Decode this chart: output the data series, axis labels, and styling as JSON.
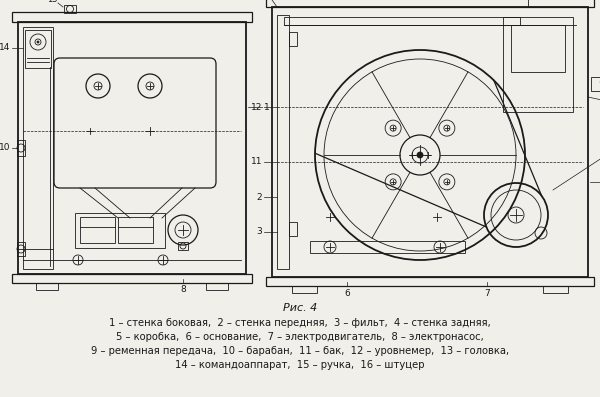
{
  "title": "Рис. 4",
  "caption_lines": [
    "1 – стенка боковая,  2 – стенка передняя,  3 – фильт,  4 – стенка задняя,",
    "5 – коробка,  6 – основание,  7 – электродвигатель,  8 – электронасос,",
    "9 – ременная передача,  10 – барабан,  11 – бак,  12 – уровнемер,  13 – головка,",
    "14 – командоаппарат,  15 – ручка,  16 – штуцер"
  ],
  "bg_color": "#f0efea",
  "line_color": "#1a1a1a",
  "fig_width": 6.0,
  "fig_height": 3.97
}
